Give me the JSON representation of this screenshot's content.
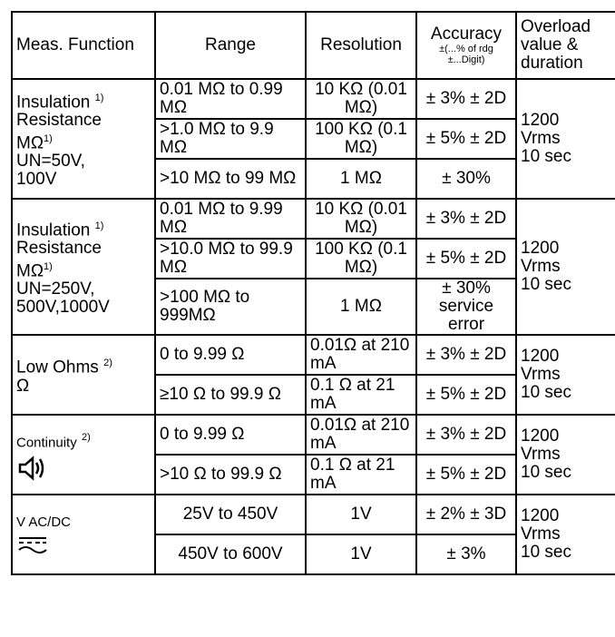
{
  "header": {
    "function": "Meas. Function",
    "range": "Range",
    "resolution": "Resolution",
    "accuracy_title": "Accuracy",
    "accuracy_sub1": "±(...% of rdg",
    "accuracy_sub2": "±...Digit)",
    "overload": "Overload value & duration"
  },
  "groups": [
    {
      "function_lines": [
        "Insulation",
        "Resistance",
        "MΩ",
        "UN=50V,",
        "100V"
      ],
      "overload": [
        "1200",
        "Vrms",
        "10 sec"
      ],
      "rows": [
        {
          "range": "0.01 MΩ to 0.99 MΩ",
          "resolution": "10 KΩ (0.01 MΩ)",
          "accuracy": "± 3% ± 2D"
        },
        {
          "range": ">1.0 MΩ to 9.9 MΩ",
          "resolution": "100 KΩ (0.1 MΩ)",
          "accuracy": "± 5% ± 2D"
        },
        {
          "range": ">10 MΩ to 99 MΩ",
          "resolution": "1 MΩ",
          "accuracy": "± 30%"
        }
      ]
    },
    {
      "function_lines": [
        "Insulation",
        "Resistance",
        "MΩ",
        "UN=250V,",
        "500V,1000V"
      ],
      "overload": [
        "1200",
        "Vrms",
        "10 sec"
      ],
      "rows": [
        {
          "range": "0.01 MΩ to 9.99 MΩ",
          "resolution": "10 KΩ (0.01 MΩ)",
          "accuracy": "± 3% ± 2D"
        },
        {
          "range": ">10.0 MΩ to 99.9 MΩ",
          "resolution": "100 KΩ (0.1 MΩ)",
          "accuracy": "± 5% ± 2D"
        },
        {
          "range": ">100 MΩ to 999MΩ",
          "resolution": "1 MΩ",
          "accuracy": "± 30% service error"
        }
      ]
    },
    {
      "function_lines": [
        "Low Ohms",
        "Ω"
      ],
      "overload": [
        "1200",
        "Vrms",
        "10 sec"
      ],
      "rows": [
        {
          "range": "0 to 9.99 Ω",
          "resolution": "0.01Ω at 210 mA",
          "accuracy": "± 3% ± 2D"
        },
        {
          "range": "≥10 Ω to 99.9 Ω",
          "resolution": "0.1 Ω at 21 mA",
          "accuracy": "± 5% ± 2D"
        }
      ]
    },
    {
      "function_lines": [
        "Continuity"
      ],
      "icon": "buzzer-speaker-icon",
      "overload": [
        "1200",
        "Vrms",
        "10 sec"
      ],
      "rows": [
        {
          "range": "0 to 9.99 Ω",
          "resolution": "0.01Ω at 210 mA",
          "accuracy": "± 3% ± 2D"
        },
        {
          "range": ">10 Ω to 99.9 Ω",
          "resolution": "0.1 Ω at 21 mA",
          "accuracy": "± 5% ± 2D"
        }
      ]
    },
    {
      "function_lines": [
        "V AC/DC"
      ],
      "icon": "ac-dc-symbol-icon",
      "overload": [
        "1200",
        "Vrms",
        "10 sec"
      ],
      "rows": [
        {
          "range": "25V to 450V",
          "resolution": "1V",
          "accuracy": "± 2% ± 3D"
        },
        {
          "range": "450V to 600V",
          "resolution": "1V",
          "accuracy": "± 3%"
        }
      ]
    }
  ],
  "footnotes": {
    "one": "1)",
    "two": "2)"
  }
}
